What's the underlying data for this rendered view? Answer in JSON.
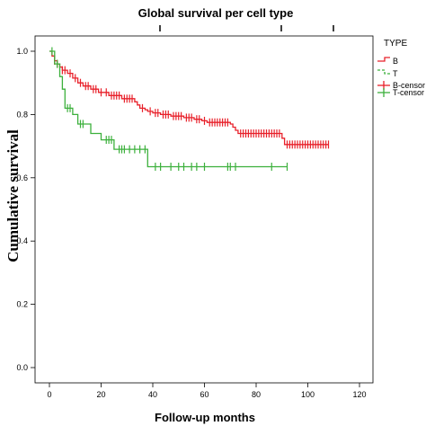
{
  "chart_data": {
    "type": "line",
    "title": "Global survival per cell type",
    "xlabel": "Follow-up months",
    "ylabel": "Cumulative survival",
    "xlim": [
      0,
      120
    ],
    "ylim": [
      0,
      1.0
    ],
    "x_ticks": [
      "0",
      "20",
      "40",
      "60",
      "80",
      "100",
      "120"
    ],
    "y_ticks": [
      "0.0",
      "0.2",
      "0.4",
      "0.6",
      "0.8",
      "1.0"
    ],
    "grid": false,
    "legend": {
      "title": "TYPE",
      "placement": "right",
      "entries": [
        "B",
        "T",
        "B-censor",
        "T-censor"
      ]
    },
    "colors": {
      "B": "#e8202a",
      "T": "#3cb03c"
    },
    "series": [
      {
        "name": "B",
        "steps": [
          [
            0,
            1.0
          ],
          [
            1,
            0.985
          ],
          [
            2,
            0.97
          ],
          [
            3,
            0.96
          ],
          [
            4,
            0.95
          ],
          [
            5,
            0.94
          ],
          [
            7,
            0.93
          ],
          [
            9,
            0.915
          ],
          [
            11,
            0.9
          ],
          [
            13,
            0.89
          ],
          [
            16,
            0.88
          ],
          [
            19,
            0.87
          ],
          [
            23,
            0.86
          ],
          [
            28,
            0.85
          ],
          [
            33,
            0.84
          ],
          [
            34,
            0.83
          ],
          [
            35,
            0.82
          ],
          [
            37,
            0.815
          ],
          [
            38,
            0.81
          ],
          [
            40,
            0.805
          ],
          [
            43,
            0.8
          ],
          [
            47,
            0.795
          ],
          [
            52,
            0.79
          ],
          [
            56,
            0.785
          ],
          [
            59,
            0.78
          ],
          [
            61,
            0.775
          ],
          [
            70,
            0.77
          ],
          [
            71,
            0.76
          ],
          [
            72,
            0.75
          ],
          [
            73,
            0.74
          ],
          [
            90,
            0.725
          ],
          [
            91,
            0.705
          ],
          [
            108,
            0.705
          ]
        ],
        "censor_x": [
          2,
          3,
          5,
          6,
          8,
          10,
          12,
          14,
          15,
          17,
          18,
          20,
          22,
          24,
          25,
          26,
          27,
          29,
          30,
          31,
          32,
          36,
          39,
          41,
          42,
          44,
          45,
          46,
          48,
          49,
          50,
          51,
          53,
          54,
          55,
          57,
          58,
          60,
          62,
          63,
          64,
          65,
          66,
          67,
          68,
          69,
          74,
          75,
          76,
          77,
          78,
          79,
          80,
          81,
          82,
          83,
          84,
          85,
          86,
          87,
          88,
          89,
          92,
          93,
          94,
          95,
          96,
          97,
          98,
          99,
          100,
          101,
          102,
          103,
          104,
          105,
          106,
          107,
          108
        ]
      },
      {
        "name": "T",
        "steps": [
          [
            0,
            1.0
          ],
          [
            2,
            0.96
          ],
          [
            4,
            0.92
          ],
          [
            5,
            0.88
          ],
          [
            6,
            0.82
          ],
          [
            9,
            0.8
          ],
          [
            11,
            0.77
          ],
          [
            16,
            0.74
          ],
          [
            20,
            0.72
          ],
          [
            25,
            0.69
          ],
          [
            38,
            0.635
          ],
          [
            92,
            0.635
          ]
        ],
        "censor_x": [
          1,
          3,
          7,
          8,
          12,
          13,
          22,
          23,
          24,
          27,
          28,
          29,
          31,
          33,
          35,
          37,
          41,
          43,
          47,
          50,
          52,
          55,
          57,
          60,
          69,
          70,
          72,
          86,
          92
        ]
      }
    ]
  }
}
